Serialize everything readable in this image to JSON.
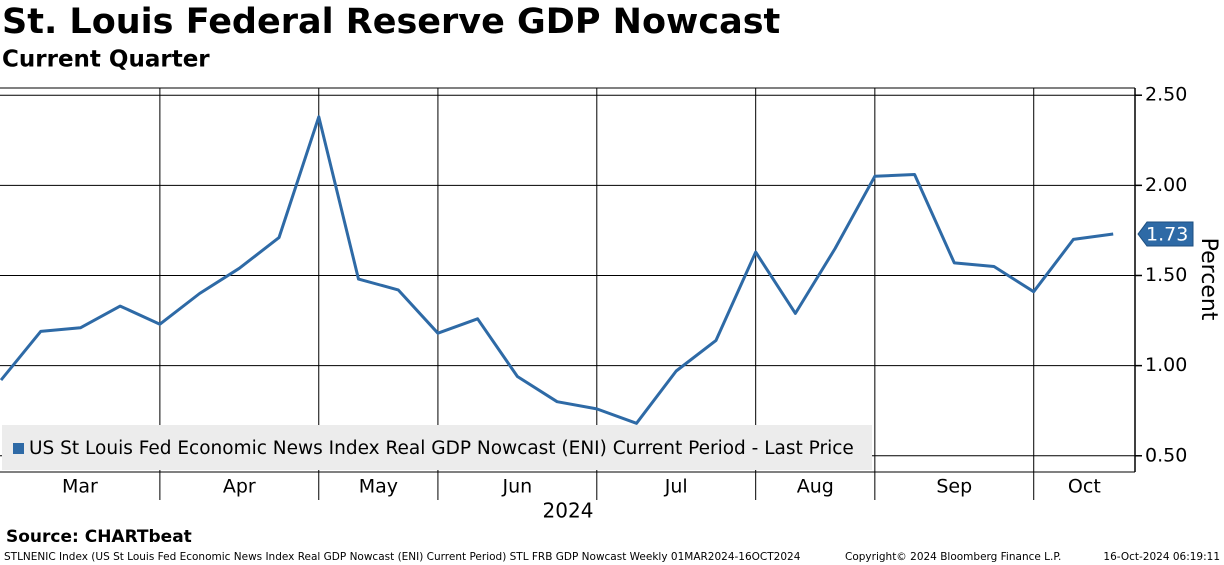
{
  "chart_data": {
    "type": "line",
    "title": "St. Louis Federal Reserve GDP Nowcast",
    "subtitle": "Current Quarter",
    "y_label": "Percent",
    "x_label": "2024",
    "categories": [
      "Mar",
      null,
      null,
      null,
      "Apr",
      null,
      null,
      null,
      "May",
      null,
      null,
      "Jun",
      null,
      null,
      null,
      "Jul",
      null,
      null,
      null,
      "Aug",
      null,
      null,
      "Sep",
      null,
      null,
      null,
      "Oct",
      null,
      null
    ],
    "series": [
      {
        "name": "US St Louis Fed Economic News Index Real GDP Nowcast (ENI) Current Period - Last Price",
        "color": "#2e6aa6",
        "values": [
          0.92,
          1.19,
          1.21,
          1.33,
          1.23,
          1.4,
          1.54,
          1.71,
          2.38,
          1.48,
          1.42,
          1.18,
          1.26,
          0.94,
          0.8,
          0.76,
          0.68,
          0.97,
          1.14,
          1.63,
          1.29,
          1.65,
          2.05,
          2.06,
          1.57,
          1.55,
          1.41,
          1.7,
          1.73
        ]
      }
    ],
    "ylim": [
      0.41,
      2.54
    ],
    "yticks": [
      {
        "value": 0.5,
        "label": "0.50"
      },
      {
        "value": 1.0,
        "label": "1.00"
      },
      {
        "value": 1.5,
        "label": "1.50"
      },
      {
        "value": 2.0,
        "label": "2.00"
      },
      {
        "value": 2.5,
        "label": "2.50"
      }
    ],
    "grid": true,
    "legend": "bottom-left",
    "source": "Source: CHARTbeat",
    "footer": [
      "STLNENIC Index (US St Louis Fed Economic News Index Real GDP Nowcast (ENI) Current Period) STL FRB GDP Nowcast  Weekly 01MAR2024-16OCT2024",
      "Copyright© 2024 Bloomberg Finance L.P.",
      "16-Oct-2024 06:19:11"
    ]
  }
}
